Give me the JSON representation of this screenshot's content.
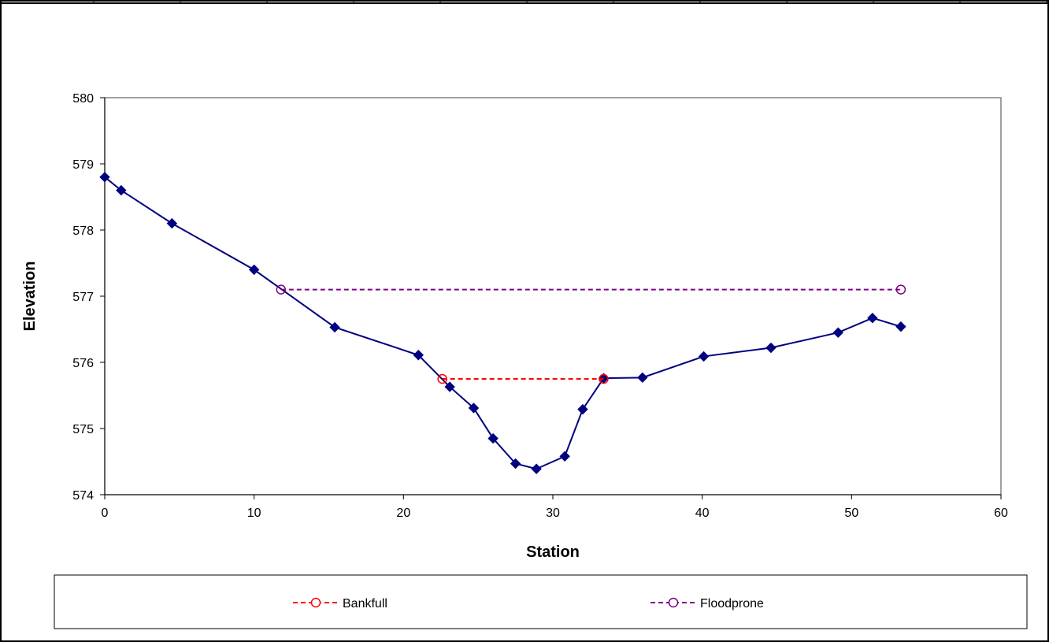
{
  "chart_data": {
    "type": "line",
    "title": "",
    "xlabel": "Station",
    "ylabel": "Elevation",
    "xlim": [
      0,
      60
    ],
    "ylim": [
      574,
      580
    ],
    "xticks": [
      0,
      10,
      20,
      30,
      40,
      50,
      60
    ],
    "yticks": [
      574,
      575,
      576,
      577,
      578,
      579,
      580
    ],
    "grid": false,
    "legend_position": "bottom",
    "series": [
      {
        "color": "#000080",
        "marker": "diamond",
        "line": "solid",
        "in_legend": false,
        "points": [
          [
            0,
            578.8
          ],
          [
            1.1,
            578.6
          ],
          [
            4.5,
            578.1
          ],
          [
            10,
            577.4
          ],
          [
            15.4,
            576.53
          ],
          [
            21,
            576.11
          ],
          [
            23.1,
            575.63
          ],
          [
            24.7,
            575.31
          ],
          [
            26,
            574.85
          ],
          [
            27.5,
            574.47
          ],
          [
            28.9,
            574.39
          ],
          [
            30.8,
            574.58
          ],
          [
            32,
            575.29
          ],
          [
            33.4,
            575.76
          ],
          [
            36,
            575.77
          ],
          [
            40.1,
            576.09
          ],
          [
            44.6,
            576.22
          ],
          [
            49.1,
            576.45
          ],
          [
            51.4,
            576.67
          ],
          [
            53.3,
            576.54
          ]
        ]
      },
      {
        "name": "Bankfull",
        "color": "#FF0000",
        "marker": "circle",
        "line": "dashed",
        "in_legend": true,
        "points": [
          [
            22.6,
            575.75
          ],
          [
            33.4,
            575.75
          ]
        ]
      },
      {
        "name": "Floodprone",
        "color": "#800080",
        "marker": "circle",
        "line": "dashed",
        "in_legend": true,
        "points": [
          [
            11.8,
            577.1
          ],
          [
            53.3,
            577.1
          ]
        ]
      }
    ]
  }
}
